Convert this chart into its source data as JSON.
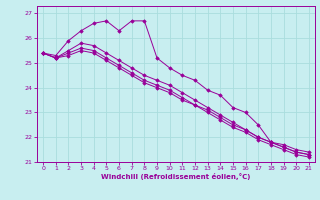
{
  "xlabel": "Windchill (Refroidissement éolien,°C)",
  "bg_color": "#c8eef0",
  "line_color": "#990099",
  "grid_color": "#aadddd",
  "xmin": 0,
  "xmax": 21,
  "ymin": 21,
  "ymax": 27,
  "series": [
    [
      25.4,
      25.3,
      25.9,
      26.3,
      26.6,
      26.7,
      26.3,
      26.7,
      26.7,
      25.2,
      24.8,
      24.5,
      24.3,
      23.9,
      23.7,
      23.2,
      23.0,
      22.5,
      21.8,
      21.7,
      21.5,
      21.4
    ],
    [
      25.4,
      25.2,
      25.5,
      25.8,
      25.7,
      25.4,
      25.1,
      24.8,
      24.5,
      24.3,
      24.1,
      23.8,
      23.5,
      23.2,
      22.9,
      22.6,
      22.3,
      22.0,
      21.8,
      21.6,
      21.4,
      21.3
    ],
    [
      25.4,
      25.2,
      25.4,
      25.6,
      25.5,
      25.2,
      24.9,
      24.6,
      24.3,
      24.1,
      23.9,
      23.6,
      23.3,
      23.1,
      22.8,
      22.5,
      22.3,
      22.0,
      21.8,
      21.6,
      21.4,
      21.3
    ],
    [
      25.4,
      25.2,
      25.3,
      25.5,
      25.4,
      25.1,
      24.8,
      24.5,
      24.2,
      24.0,
      23.8,
      23.5,
      23.3,
      23.0,
      22.7,
      22.4,
      22.2,
      21.9,
      21.7,
      21.5,
      21.3,
      21.2
    ]
  ]
}
